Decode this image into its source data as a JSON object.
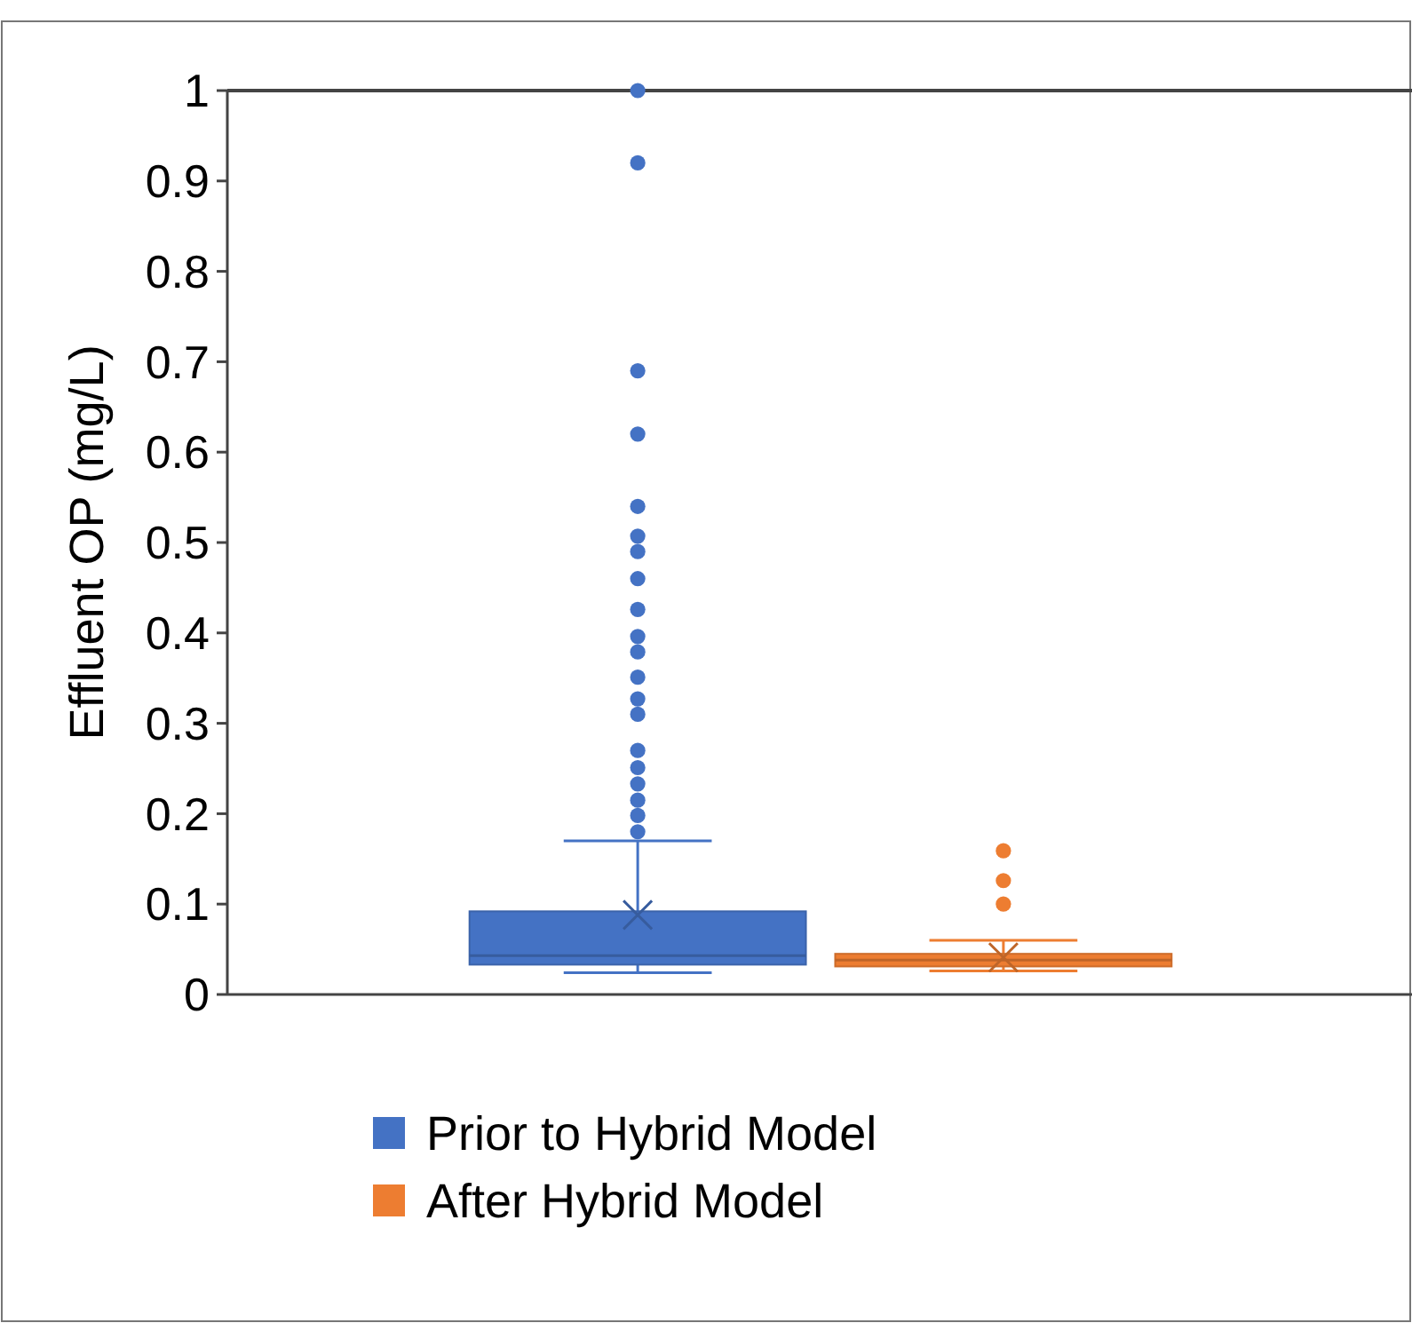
{
  "chart_data": {
    "type": "box",
    "ylabel": "Effluent OP (mg/L)",
    "categories": [
      null
    ],
    "ylim": [
      0,
      1
    ],
    "yticks": [
      {
        "value": 0,
        "label": "0"
      },
      0.1,
      0.2,
      0.3,
      0.4,
      0.5,
      0.6,
      0.7,
      0.8,
      0.9,
      {
        "value": 1,
        "label": "1"
      }
    ],
    "grid": false,
    "legend": "bottom",
    "marker": "circle",
    "series": [
      {
        "name": "Prior to Hybrid Model",
        "color": "#4472c4",
        "boxes": [
          {
            "low": 0.024,
            "q1": 0.033,
            "median": 0.043,
            "q3": 0.092,
            "high": 0.17,
            "mean": 0.088,
            "outliers": [
              1.0,
              0.92,
              0.69,
              0.62,
              0.54,
              0.507,
              0.49,
              0.46,
              0.426,
              0.396,
              0.379,
              0.351,
              0.327,
              0.31,
              0.27,
              0.251,
              0.233,
              0.215,
              0.198,
              0.18
            ]
          }
        ]
      },
      {
        "name": "After Hybrid Model",
        "color": "#ed7d31",
        "boxes": [
          {
            "low": 0.026,
            "q1": 0.031,
            "median": 0.038,
            "q3": 0.045,
            "high": 0.06,
            "mean": 0.041,
            "outliers": [
              0.159,
              0.126,
              0.1
            ]
          }
        ]
      }
    ]
  }
}
